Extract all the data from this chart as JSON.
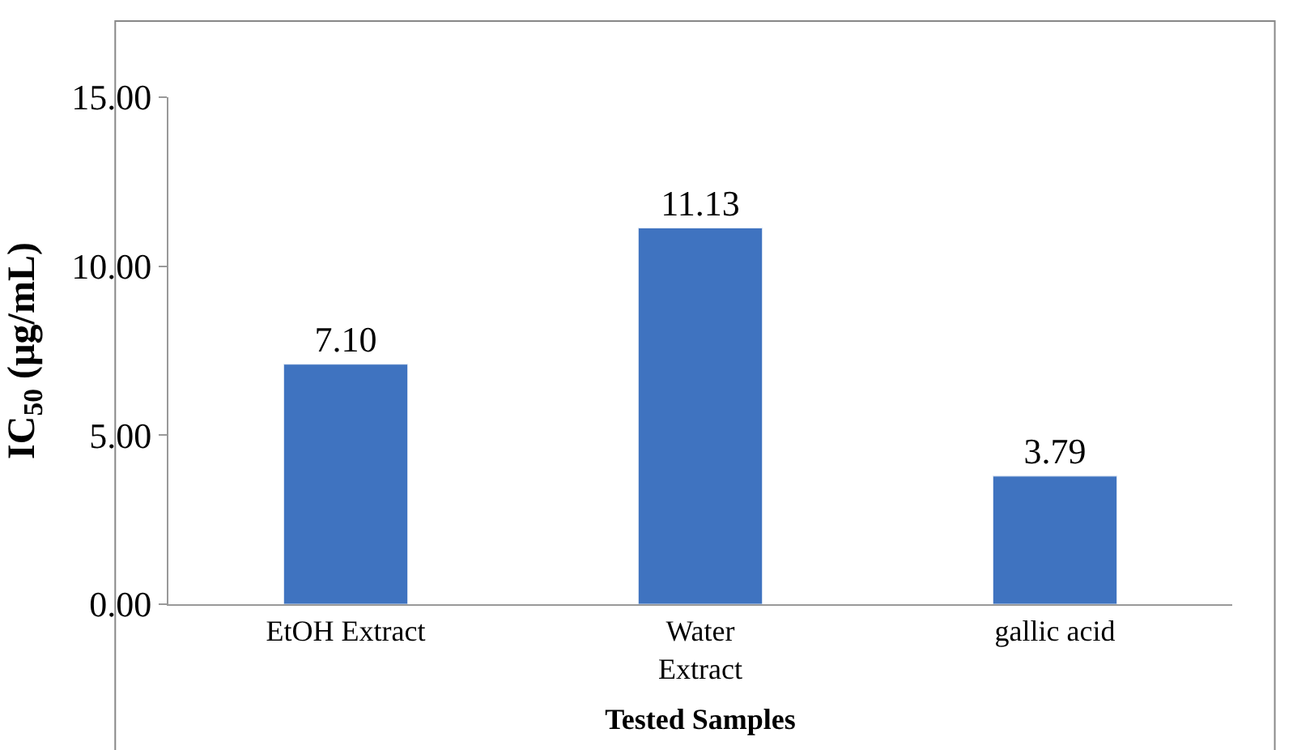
{
  "chart_data": {
    "type": "bar",
    "categories": [
      "EtOH Extract",
      "Water Extract",
      "gallic acid"
    ],
    "values": [
      7.1,
      11.13,
      3.79
    ],
    "value_labels": [
      "7.10",
      "11.13",
      "3.79"
    ],
    "color": "#3f73c0",
    "xlabel": "Tested Samples",
    "ylabel": "IC$_{50}$ (µg/mL)",
    "ylim": [
      0,
      15
    ],
    "yticks": [
      {
        "value": 0,
        "label": "0.00"
      },
      {
        "value": 5,
        "label": "5.00"
      },
      {
        "value": 10,
        "label": "10.00"
      },
      {
        "value": 15,
        "label": "15.00"
      }
    ],
    "grid": false,
    "legend": false
  }
}
